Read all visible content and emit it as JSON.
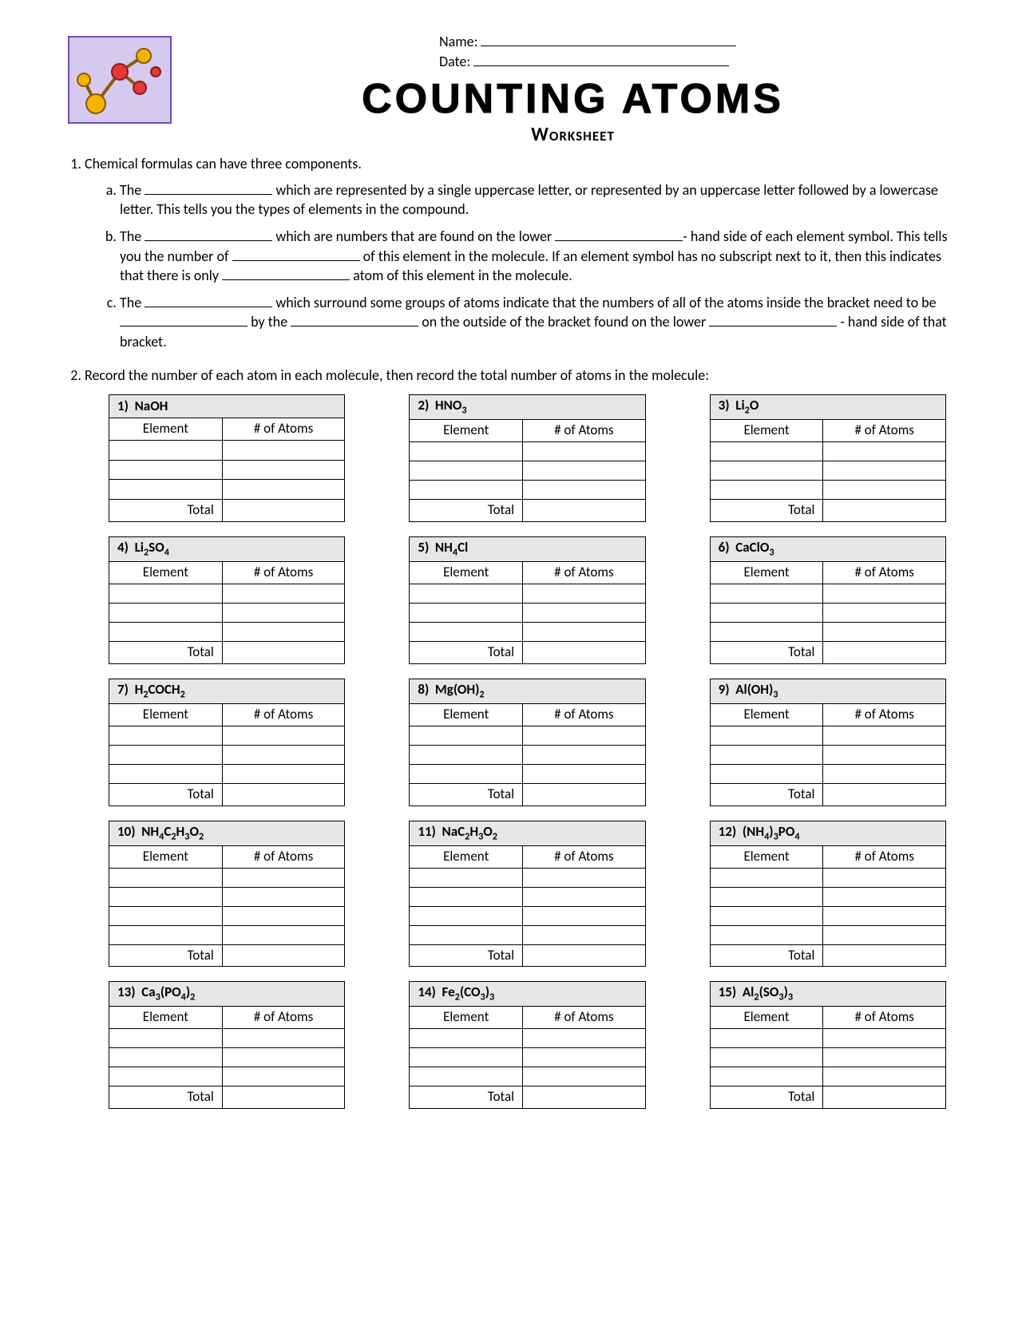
{
  "header": {
    "name_label": "Name:",
    "date_label": "Date:",
    "title": "COUNTING ATOMS",
    "subtitle": "Worksheet"
  },
  "q1": {
    "intro": "Chemical formulas can have three components.",
    "a_pre": "The ",
    "a_mid": " which are represented by a single uppercase letter, or represented by an uppercase letter followed by a lowercase letter.  This tells you the types of elements in the compound.",
    "b_1": "The ",
    "b_2": " which are numbers that are found on the lower ",
    "b_3": "- hand side of each element symbol.  This tells you the number of ",
    "b_4": " of this element in the molecule.  If an element symbol has no subscript next to it, then this indicates that there is only ",
    "b_5": " atom of this element in the molecule.",
    "c_1": "The ",
    "c_2": " which surround some groups of atoms indicate that the numbers of all of the atoms inside the bracket need to be ",
    "c_3": " by the ",
    "c_4": " on the outside of the bracket found on the lower ",
    "c_5": " - hand side of that bracket."
  },
  "q2_intro": "Record the number of each atom in each molecule, then record the total number of atoms in the molecule:",
  "col_element": "Element",
  "col_atoms": "# of Atoms",
  "total_label": "Total",
  "tables": [
    {
      "n": "1)",
      "formula": "NaOH",
      "rows": 3
    },
    {
      "n": "2)",
      "formula": "HNO<sub>3</sub>",
      "rows": 3
    },
    {
      "n": "3)",
      "formula": "Li<sub>2</sub>O",
      "rows": 3
    },
    {
      "n": "4)",
      "formula": "Li<sub>2</sub>SO<sub>4</sub>",
      "rows": 3
    },
    {
      "n": "5)",
      "formula": "NH<sub>4</sub>Cl",
      "rows": 3
    },
    {
      "n": "6)",
      "formula": "CaClO<sub>3</sub>",
      "rows": 3
    },
    {
      "n": "7)",
      "formula": "H<sub>2</sub>COCH<sub>2</sub>",
      "rows": 3
    },
    {
      "n": "8)",
      "formula": "Mg(OH)<sub>2</sub>",
      "rows": 3
    },
    {
      "n": "9)",
      "formula": "Al(OH)<sub>3</sub>",
      "rows": 3
    },
    {
      "n": "10)",
      "formula": "NH<sub>4</sub>C<sub>2</sub>H<sub>3</sub>O<sub>2</sub>",
      "rows": 4
    },
    {
      "n": "11)",
      "formula": "NaC<sub>2</sub>H<sub>3</sub>O<sub>2</sub>",
      "rows": 4
    },
    {
      "n": "12)",
      "formula": "(NH<sub>4</sub>)<sub>3</sub>PO<sub>4</sub>",
      "rows": 4
    },
    {
      "n": "13)",
      "formula": "Ca<sub>3</sub>(PO<sub>4</sub>)<sub>2</sub>",
      "rows": 3
    },
    {
      "n": "14)",
      "formula": "Fe<sub>2</sub>(CO<sub>3</sub>)<sub>3</sub>",
      "rows": 3
    },
    {
      "n": "15)",
      "formula": "Al<sub>2</sub>(SO<sub>3</sub>)<sub>3</sub>",
      "rows": 3
    }
  ]
}
